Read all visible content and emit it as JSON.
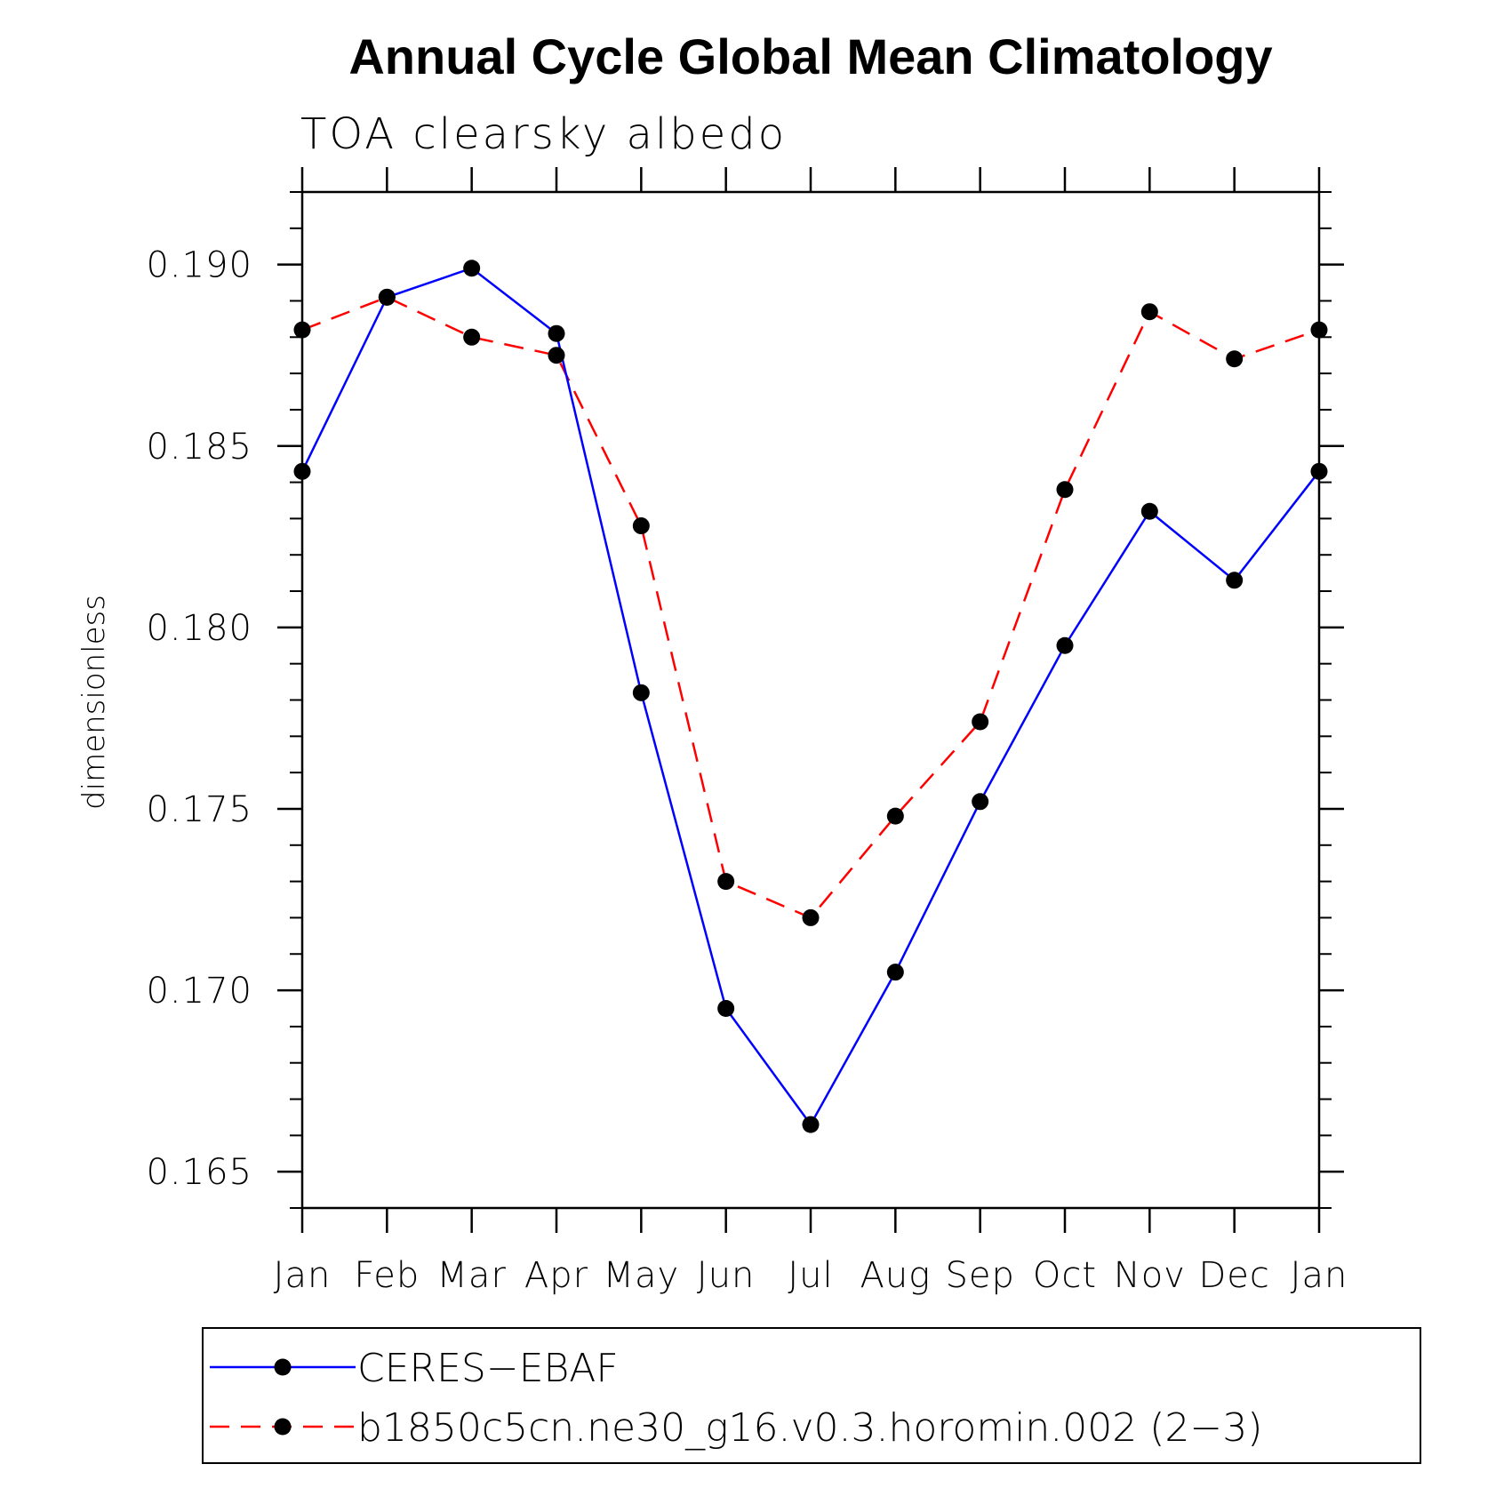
{
  "chart_data": {
    "type": "line",
    "title": "Annual Cycle Global Mean Climatology",
    "subtitle": "TOA clearsky albedo",
    "xlabel": "",
    "ylabel": "dimensionless",
    "categories": [
      "Jan",
      "Feb",
      "Mar",
      "Apr",
      "May",
      "Jun",
      "Jul",
      "Aug",
      "Sep",
      "Oct",
      "Nov",
      "Dec",
      "Jan"
    ],
    "ylim": [
      0.164,
      0.192
    ],
    "yticks": [
      0.165,
      0.17,
      0.175,
      0.18,
      0.185,
      0.19
    ],
    "ytick_labels": [
      "0.165",
      "0.170",
      "0.175",
      "0.180",
      "0.185",
      "0.190"
    ],
    "grid": false,
    "legend_position": "bottom",
    "series": [
      {
        "name": "CERES−EBAF",
        "color": "#0000ff",
        "dash": "solid",
        "marker": "filled-circle",
        "values": [
          0.1843,
          0.1891,
          0.1899,
          0.1881,
          0.1782,
          0.1695,
          0.1663,
          0.1705,
          0.1752,
          0.1795,
          0.1832,
          0.1813,
          0.1843
        ]
      },
      {
        "name": "b1850c5cn.ne30_g16.v0.3.horomin.002 (2−3)",
        "color": "#ff0000",
        "dash": "dashed",
        "marker": "filled-circle",
        "values": [
          0.1882,
          0.1891,
          0.188,
          0.1875,
          0.1828,
          0.173,
          0.172,
          0.1748,
          0.1774,
          0.1838,
          0.1887,
          0.1874,
          0.1882
        ]
      }
    ]
  }
}
